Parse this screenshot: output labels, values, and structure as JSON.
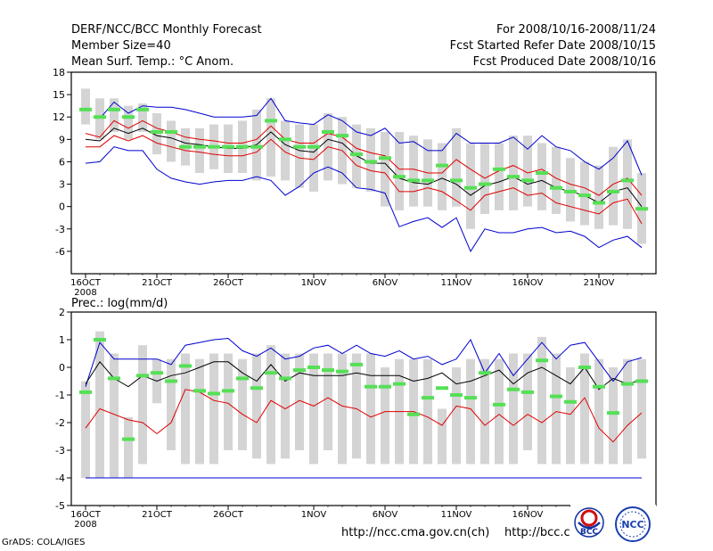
{
  "header": {
    "title": "DERF/NCC/BCC Monthly Forecast",
    "member_size": "Member Size=40",
    "variable": "Mean Surf. Temp.: °C Anom.",
    "period": "For 2008/10/16-2008/11/24",
    "started": "Fcst Started Refer Date 2008/10/15",
    "produced": "Fcst Produced Date 2008/10/16"
  },
  "footer": {
    "grads": "GrADS: COLA/IGES",
    "url1": "http://ncc.cma.gov.cn(ch)",
    "url2": "http://bcc.c"
  },
  "logos": {
    "bcc": "BCC",
    "ncc": "NCC"
  },
  "colors": {
    "box": "#d4d4d4",
    "median": "#55e055",
    "envelope": "#0000d0",
    "band": "#e00000",
    "mean": "#000000"
  },
  "chart_data": [
    {
      "type": "box",
      "title": "Mean Surf. Temp.: °C Anom.",
      "xlabel": "",
      "ylabel": "°C",
      "ylim": [
        -9,
        18
      ],
      "yticks": [
        -6,
        -3,
        0,
        3,
        6,
        9,
        12,
        15,
        18
      ],
      "x": [
        1,
        2,
        3,
        4,
        5,
        6,
        7,
        8,
        9,
        10,
        11,
        12,
        13,
        14,
        15,
        16,
        17,
        18,
        19,
        20,
        21,
        22,
        23,
        24,
        25,
        26,
        27,
        28,
        29,
        30,
        31,
        32,
        33,
        34,
        35,
        36,
        37,
        38,
        39,
        40
      ],
      "xticks": [
        {
          "day": 1,
          "label": "16OCT",
          "sub": "2008"
        },
        {
          "day": 6,
          "label": "21OCT"
        },
        {
          "day": 11,
          "label": "26OCT"
        },
        {
          "day": 17,
          "label": "1NOV"
        },
        {
          "day": 22,
          "label": "6NOV"
        },
        {
          "day": 27,
          "label": "11NOV"
        },
        {
          "day": 32,
          "label": "16NOV"
        },
        {
          "day": 37,
          "label": "21NOV"
        }
      ],
      "box_top": [
        15.8,
        14.5,
        14.5,
        13.5,
        13.8,
        12.5,
        11.5,
        10.5,
        10.5,
        11,
        11,
        11.5,
        13,
        14.5,
        11.5,
        11,
        11,
        12.5,
        12,
        11,
        10.5,
        10,
        10,
        9.5,
        9,
        8.5,
        10.5,
        8.5,
        8.5,
        8.5,
        9.5,
        9.5,
        8.5,
        8,
        6.5,
        6,
        5.5,
        8,
        9,
        4.5
      ],
      "box_bottom": [
        11,
        9,
        10,
        9,
        10,
        7,
        6,
        5.5,
        4.5,
        5,
        4.5,
        4.5,
        3.5,
        4,
        3.5,
        2.5,
        2,
        3.5,
        3,
        2.5,
        2,
        0,
        -0.5,
        0,
        0,
        -0.5,
        0,
        -3,
        -1,
        -0.5,
        -0.5,
        0,
        -0.5,
        -1,
        -2,
        -2.5,
        -3,
        -2.5,
        -3,
        -5
      ],
      "series": [
        {
          "name": "median",
          "values": [
            13,
            12,
            13,
            12,
            13,
            10,
            10,
            8,
            8,
            8,
            8,
            8,
            8,
            11.5,
            9,
            8,
            8,
            10,
            9.5,
            7,
            6,
            6.5,
            4,
            3.5,
            3.5,
            5.5,
            3.5,
            2.5,
            3,
            5,
            4,
            3.5,
            4.5,
            2.5,
            2,
            1.5,
            0.5,
            2,
            3.5,
            -0.3
          ]
        },
        {
          "name": "max",
          "values": [
            null,
            11.8,
            14,
            12.5,
            13.5,
            13.3,
            13.3,
            13,
            12.5,
            12,
            12,
            12,
            12.2,
            14.5,
            11.5,
            11.2,
            11,
            12.3,
            11.5,
            10,
            9.5,
            10.5,
            8.5,
            8.7,
            7.5,
            7.5,
            9.8,
            8.5,
            8.5,
            8.5,
            9.3,
            7.7,
            9.5,
            8,
            7.5,
            6,
            5,
            6.5,
            8.8,
            4.2
          ]
        },
        {
          "name": "upper",
          "values": [
            9.8,
            9.3,
            11.5,
            10.5,
            11.5,
            10.5,
            10,
            9.3,
            9,
            8.8,
            8.5,
            8.5,
            9,
            10.8,
            9,
            8.5,
            8.5,
            9.8,
            9.3,
            7.8,
            7.2,
            6.8,
            5,
            5,
            4.5,
            4.5,
            6.3,
            5,
            3.8,
            4.8,
            5.5,
            4.5,
            5,
            3.8,
            3,
            2.5,
            1.5,
            3,
            3.8,
            1.5
          ]
        },
        {
          "name": "mean",
          "values": [
            9,
            8.8,
            10.5,
            9.8,
            10.5,
            9.5,
            9.2,
            8.5,
            8.3,
            8,
            7.8,
            7.8,
            8.3,
            10,
            8.3,
            7.5,
            7.3,
            9,
            8.5,
            6.8,
            5.8,
            5.8,
            3.8,
            3.2,
            3,
            3.8,
            3,
            1.5,
            2.8,
            3.3,
            4,
            3,
            3.5,
            2.5,
            2,
            1.5,
            0.5,
            2,
            2.5,
            0
          ]
        },
        {
          "name": "lower",
          "values": [
            8,
            8,
            9.5,
            8.8,
            9.5,
            8.5,
            8,
            7.5,
            7.3,
            7,
            6.8,
            6.8,
            7.3,
            9,
            7.3,
            6.5,
            6.3,
            8,
            7.5,
            5.5,
            4.8,
            4.5,
            2,
            2,
            2.5,
            2,
            0.8,
            -0.5,
            1.5,
            2,
            2.5,
            1.5,
            1.8,
            0.5,
            0,
            -0.5,
            -1,
            0.5,
            1,
            -2.3
          ]
        },
        {
          "name": "min",
          "values": [
            5.8,
            6,
            8,
            7.5,
            7.5,
            5,
            3.8,
            3.3,
            3,
            3.3,
            3.5,
            3.5,
            4,
            3.5,
            1.5,
            2.7,
            4.5,
            5.3,
            4.5,
            2.5,
            2.3,
            1.8,
            -2.7,
            -2,
            -1.5,
            -2.8,
            -1.5,
            -6,
            -3,
            -3.5,
            -3.5,
            -3,
            -2.8,
            -3.5,
            -3.3,
            -4,
            -5.5,
            -4.5,
            -4,
            -5.5
          ]
        }
      ]
    },
    {
      "type": "box",
      "title": "Prec.: log(mm/d)",
      "xlabel": "",
      "ylabel": "log(mm/d)",
      "ylim": [
        -5,
        2
      ],
      "yticks": [
        -5,
        -4,
        -3,
        -2,
        -1,
        0,
        1,
        2
      ],
      "x": [
        1,
        2,
        3,
        4,
        5,
        6,
        7,
        8,
        9,
        10,
        11,
        12,
        13,
        14,
        15,
        16,
        17,
        18,
        19,
        20,
        21,
        22,
        23,
        24,
        25,
        26,
        27,
        28,
        29,
        30,
        31,
        32,
        33,
        34,
        35,
        36,
        37,
        38,
        39,
        40
      ],
      "xticks": [
        {
          "day": 1,
          "label": "16OCT",
          "sub": "2008"
        },
        {
          "day": 6,
          "label": "21OCT"
        },
        {
          "day": 11,
          "label": "26OCT"
        },
        {
          "day": 17,
          "label": "1NOV"
        },
        {
          "day": 22,
          "label": "6NOV"
        },
        {
          "day": 27,
          "label": "11NOV"
        },
        {
          "day": 32,
          "label": "16NOV"
        },
        {
          "day": 37,
          "label": "21NOV"
        }
      ],
      "box_top": [
        -0.5,
        1.3,
        0.5,
        -1.8,
        0.8,
        0.3,
        0.3,
        0.5,
        0.3,
        0.5,
        0.5,
        0.3,
        0.5,
        0.8,
        0.5,
        0.5,
        0.5,
        0.5,
        0.5,
        0.5,
        0.5,
        0,
        0.3,
        0.3,
        0.3,
        -1.5,
        0,
        0.3,
        0.3,
        0.3,
        0.5,
        0.5,
        1.1,
        0.5,
        0,
        0.5,
        0.3,
        0,
        0.3,
        0.3
      ],
      "box_bottom": [
        -4,
        -4,
        -4,
        -4,
        -3.5,
        -1.3,
        -3,
        -3.5,
        -3.5,
        -3.5,
        -3,
        -3,
        -3.3,
        -3.5,
        -3.3,
        -3,
        -3.5,
        -3,
        -3.5,
        -3.3,
        -3.5,
        -3.5,
        -3.5,
        -3.5,
        -3.5,
        -3.5,
        -3.5,
        -3.5,
        -3.5,
        -3.5,
        -3.5,
        -3,
        -3.5,
        -3.5,
        -3.5,
        -3.5,
        -3.5,
        -3.5,
        -3.5,
        -3.3
      ],
      "series": [
        {
          "name": "median",
          "values": [
            -0.9,
            1,
            -0.4,
            -2.6,
            -0.3,
            -0.2,
            -0.5,
            0.05,
            -0.85,
            -0.95,
            -0.85,
            -0.4,
            -0.75,
            -0.2,
            -0.4,
            -0.1,
            0,
            -0.1,
            -0.15,
            0.1,
            -0.7,
            -0.7,
            -0.6,
            -1.7,
            -1.1,
            -0.75,
            -1,
            -1.1,
            -0.2,
            -1.35,
            -0.8,
            -0.9,
            0.25,
            -1.05,
            -1.25,
            0,
            -0.7,
            -1.65,
            -0.6,
            -0.5
          ]
        },
        {
          "name": "max",
          "values": [
            -0.7,
            0.9,
            0.3,
            0.3,
            0.3,
            0.3,
            0.1,
            0.8,
            0.9,
            1,
            1.05,
            0.6,
            0.4,
            0.7,
            0.3,
            0.4,
            0.7,
            0.8,
            0.5,
            0.8,
            0.5,
            0.4,
            0.6,
            0.3,
            0.4,
            0.1,
            0.3,
            1,
            -0.2,
            0.5,
            -0.3,
            0.3,
            0.9,
            0.3,
            0.8,
            0.9,
            0.2,
            -0.5,
            0.2,
            0.35
          ]
        },
        {
          "name": "mean",
          "values": [
            -0.6,
            0.2,
            -0.4,
            -0.7,
            -0.3,
            -0.5,
            -0.3,
            -0.2,
            0,
            0.2,
            0.2,
            -0.2,
            -0.5,
            0.1,
            -0.5,
            -0.2,
            -0.3,
            -0.3,
            -0.3,
            -0.2,
            -0.3,
            -0.3,
            -0.3,
            -0.5,
            -0.4,
            -0.2,
            -0.6,
            -0.5,
            -0.3,
            -0.1,
            -0.6,
            -0.2,
            0,
            -0.3,
            -0.6,
            0,
            -0.8,
            -0.4,
            -0.6,
            -0.45
          ]
        },
        {
          "name": "lower",
          "values": [
            -2.2,
            -1.5,
            -1.7,
            -1.9,
            -2,
            -2.4,
            -2,
            -0.8,
            -0.9,
            -1.2,
            -1.3,
            -1.7,
            -2,
            -1.2,
            -1.5,
            -1.2,
            -1.4,
            -1.1,
            -1.4,
            -1.5,
            -1.8,
            -1.6,
            -1.6,
            -1.6,
            -1.8,
            -2.1,
            -1.4,
            -1.5,
            -2.1,
            -1.7,
            -2.1,
            -1.7,
            -2,
            -1.6,
            -1.7,
            -1.1,
            -2.2,
            -2.7,
            -2.1,
            -1.65
          ]
        },
        {
          "name": "min",
          "values": [
            -4,
            -4,
            -4,
            -4,
            -4,
            -4,
            -4,
            -4,
            -4,
            -4,
            -4,
            -4,
            -4,
            -4,
            -4,
            -4,
            -4,
            -4,
            -4,
            -4,
            -4,
            -4,
            -4,
            -4,
            -4,
            -4,
            -4,
            -4,
            -4,
            -4,
            -4,
            -4,
            -4,
            -4,
            -4,
            -4,
            -4,
            -4,
            -4,
            -4
          ]
        }
      ]
    }
  ]
}
